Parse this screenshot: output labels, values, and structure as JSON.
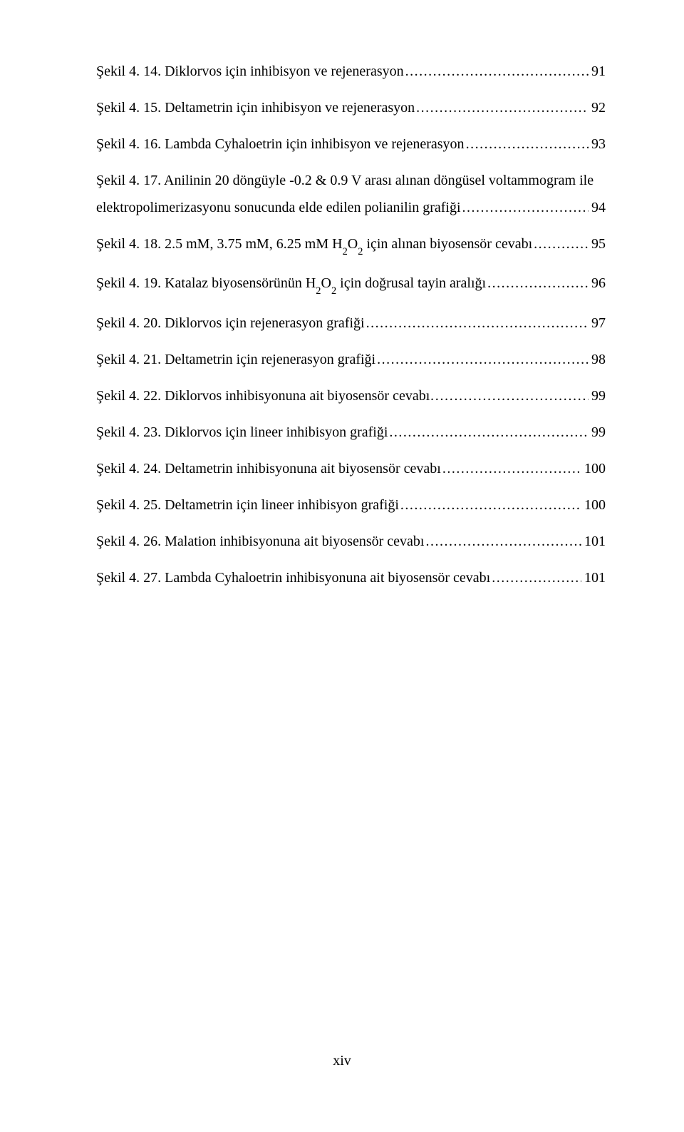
{
  "entries": [
    {
      "prefix": "Şekil 4. 14.",
      "title": " Diklorvos için inhibisyon ve rejenerasyon",
      "page": "91"
    },
    {
      "prefix": "Şekil 4. 15.",
      "title": " Deltametrin için inhibisyon ve rejenerasyon",
      "page": "92"
    },
    {
      "prefix": "Şekil 4. 16.",
      "title": " Lambda Cyhaloetrin için inhibisyon ve rejenerasyon",
      "page": "93"
    },
    {
      "prefix": "Şekil 4. 17.",
      "title_line1": " Anilinin 20 döngüyle -0.2 & 0.9 V arası alınan döngüsel voltammogram ile",
      "title_line2": "elektropolimerizasyonu sonucunda elde edilen polianilin grafiği",
      "page": "94",
      "multiline": true
    },
    {
      "prefix": "Şekil 4. 18.",
      "title_pre": "  2.5 mM, 3.75 mM, 6.25 mM H",
      "title_sub": "2",
      "title_mid": "O",
      "title_sub2": "2",
      "title_post": " için alınan biyosensör cevabı",
      "page": "95",
      "has_sub": true
    },
    {
      "prefix": "Şekil 4. 19.",
      "title_pre": " Katalaz biyosensörünün H",
      "title_sub": "2",
      "title_mid": "O",
      "title_sub2": "2",
      "title_post": " için doğrusal tayin aralığı",
      "page": "96",
      "has_sub": true
    },
    {
      "prefix": "Şekil 4. 20.",
      "title": " Diklorvos için rejenerasyon grafiği",
      "page": "97"
    },
    {
      "prefix": "Şekil 4. 21.",
      "title": " Deltametrin için rejenerasyon grafiği",
      "page": "98"
    },
    {
      "prefix": "Şekil 4. 22.",
      "title": " Diklorvos inhibisyonuna ait biyosensör cevabı",
      "page": "99",
      "dotstyle": "ellipsis"
    },
    {
      "prefix": "Şekil 4. 23.",
      "title": " Diklorvos için lineer inhibisyon grafiği",
      "page": "99"
    },
    {
      "prefix": "Şekil 4. 24.",
      "title": " Deltametrin inhibisyonuna ait biyosensör cevabı",
      "page": "100"
    },
    {
      "prefix": "Şekil 4. 25.",
      "title": " Deltametrin için lineer inhibisyon grafiği",
      "page": "100"
    },
    {
      "prefix": "Şekil 4. 26.",
      "title": " Malation inhibisyonuna ait biyosensör cevabı",
      "page": "101"
    },
    {
      "prefix": "Şekil 4. 27.",
      "title": " Lambda Cyhaloetrin inhibisyonuna ait biyosensör cevabı",
      "page": "101"
    }
  ],
  "footer": "xiv"
}
